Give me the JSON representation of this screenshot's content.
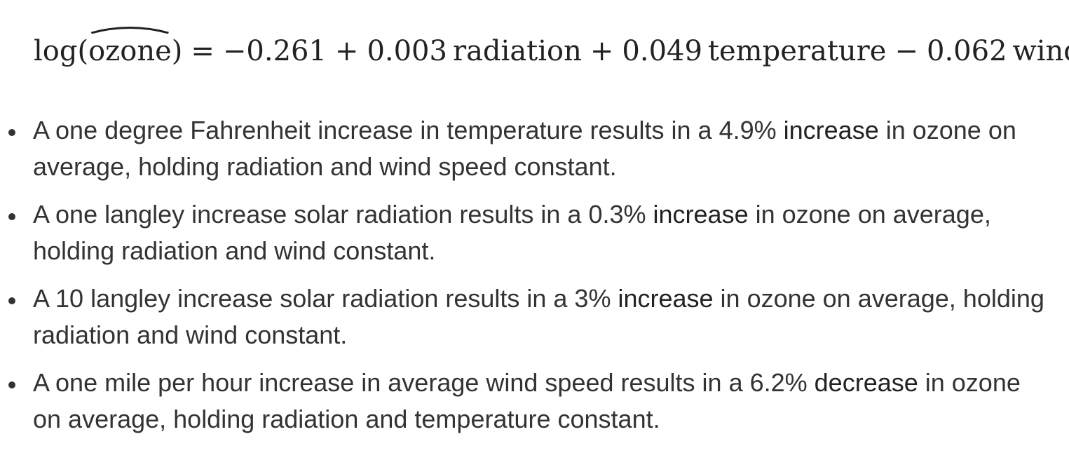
{
  "equation": {
    "lhs_func": "log(",
    "lhs_var": "ozone",
    "lhs_close": ")",
    "equals": "=",
    "intercept": "−0.261",
    "op1": "+",
    "coef1": "0.003",
    "var1": "radiation",
    "op2": "+",
    "coef2": "0.049",
    "var2": "temperature",
    "op3": "−",
    "coef3": "0.062",
    "var3": "wind"
  },
  "bullets": [
    {
      "pre": "A one degree Fahrenheit increase in temperature results in a 4.9% ",
      "keyword": "increase",
      "post": " in ozone on average, holding radiation and wind speed constant."
    },
    {
      "pre": "A one langley increase solar radiation results in a 0.3% ",
      "keyword": "increase",
      "post": " in ozone on average, holding radiation and wind constant."
    },
    {
      "pre": "A 10 langley increase solar radiation results in a 3% ",
      "keyword": "increase",
      "post": " in ozone on average, holding radiation and wind constant."
    },
    {
      "pre": "A one mile per hour increase in average wind speed results in a 6.2% ",
      "keyword": "decrease",
      "post": " in ozone on average, holding radiation and temperature constant."
    }
  ]
}
